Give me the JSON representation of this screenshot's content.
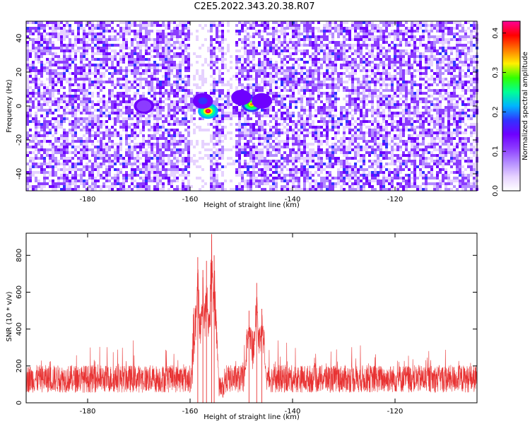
{
  "title": "C2E5.2022.343.20.38.R07",
  "colors": {
    "spectrogram_background": "#ffffff",
    "snr_line": "#e83232",
    "colormap": [
      "#ffffff",
      "#e6d2ff",
      "#b48cff",
      "#8c3cff",
      "#6e00ff",
      "#3232ff",
      "#00b4ff",
      "#00ff96",
      "#32ff00",
      "#fff000",
      "#ff7800",
      "#ff0000",
      "#ff0096"
    ]
  },
  "chart_data": [
    {
      "type": "heatmap",
      "name": "spectrogram",
      "xlabel": "Height of straight line (km)",
      "ylabel": "Frequency (Hz)",
      "xlim": [
        -192,
        -104
      ],
      "ylim": [
        -50,
        50
      ],
      "xticks": [
        -180,
        -160,
        -140,
        -120
      ],
      "xtick_labels": [
        "-180",
        "-160",
        "-140",
        "-120"
      ],
      "yticks": [
        -40,
        -20,
        0,
        20,
        40
      ],
      "ytick_labels": [
        "-40",
        "-20",
        "0",
        "20",
        "40"
      ],
      "colorbar": {
        "label": "Normalized spectral amplitude",
        "range": [
          0,
          0.43
        ],
        "ticks": [
          0,
          0.1,
          0.2,
          0.3,
          0.4
        ],
        "tick_labels": [
          "0.0",
          "0.1",
          "0.2",
          "0.3",
          "0.4"
        ]
      },
      "hotspots": [
        {
          "x": -156.5,
          "y": -3,
          "value": 0.42
        },
        {
          "x": -148,
          "y": 1,
          "value": 0.36
        },
        {
          "x": -157.5,
          "y": 3,
          "value": 0.18
        },
        {
          "x": -150,
          "y": 5,
          "value": 0.15
        },
        {
          "x": -146,
          "y": 3,
          "value": 0.14
        },
        {
          "x": -169,
          "y": 0,
          "value": 0.12
        }
      ],
      "low_amplitude_bands": [
        [
          -160,
          -156
        ],
        [
          -153.5,
          -151
        ]
      ]
    },
    {
      "type": "line",
      "name": "snr",
      "xlabel": "Height of straight line (km)",
      "ylabel": "SNR (10 * v/v)",
      "xlim": [
        -192,
        -104
      ],
      "ylim": [
        0,
        920
      ],
      "xticks": [
        -180,
        -160,
        -140,
        -120
      ],
      "xtick_labels": [
        "-180",
        "-160",
        "-140",
        "-120"
      ],
      "yticks": [
        0,
        200,
        400,
        600,
        800
      ],
      "ytick_labels": [
        "0",
        "200",
        "400",
        "600",
        "800"
      ],
      "baseline_mean": 130,
      "peaks": [
        {
          "x": -158.5,
          "y": 790
        },
        {
          "x": -157.5,
          "y": 720
        },
        {
          "x": -156.8,
          "y": 770
        },
        {
          "x": -155.8,
          "y": 915
        },
        {
          "x": -155.3,
          "y": 800
        },
        {
          "x": -148.5,
          "y": 500
        },
        {
          "x": -147,
          "y": 650
        },
        {
          "x": -146,
          "y": 510
        }
      ]
    }
  ]
}
